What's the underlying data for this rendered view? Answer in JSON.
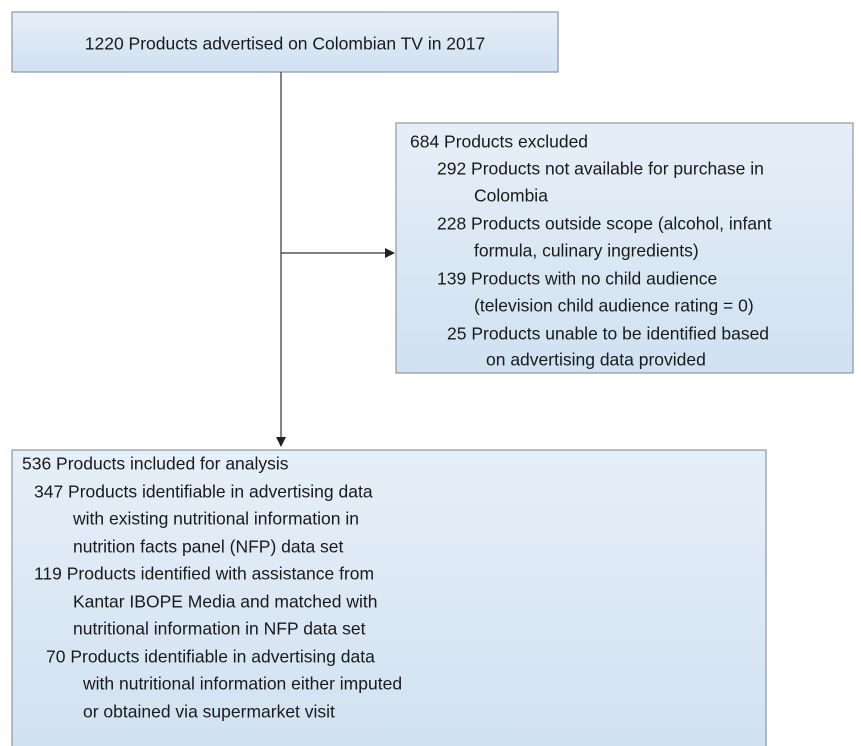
{
  "nodes": [
    {
      "label": "1220 Products advertised on Colombian TV in 2017"
    },
    {
      "title": "684 Products excluded",
      "items": [
        {
          "lines": [
            "292 Products not available for purchase in",
            "Colombia"
          ]
        },
        {
          "lines": [
            "228 Products outside scope (alcohol, infant",
            "formula, culinary ingredients)"
          ]
        },
        {
          "lines": [
            "139 Products with no child audience",
            "(television child audience rating = 0)"
          ]
        },
        {
          "lines": [
            "25 Products unable to be identified based",
            "on advertising data provided"
          ]
        }
      ]
    },
    {
      "title": "536 Products included for analysis",
      "items": [
        {
          "lines": [
            "347 Products identifiable in advertising data",
            "with existing nutritional information in",
            "nutrition facts panel (NFP) data set"
          ]
        },
        {
          "lines": [
            "119 Products identified with assistance from",
            "Kantar IBOPE Media and matched with",
            "nutritional information in NFP data set"
          ]
        },
        {
          "lines": [
            "70 Products identifiable in advertising data",
            "with nutritional information either imputed",
            "or obtained via supermarket visit"
          ]
        }
      ]
    }
  ]
}
